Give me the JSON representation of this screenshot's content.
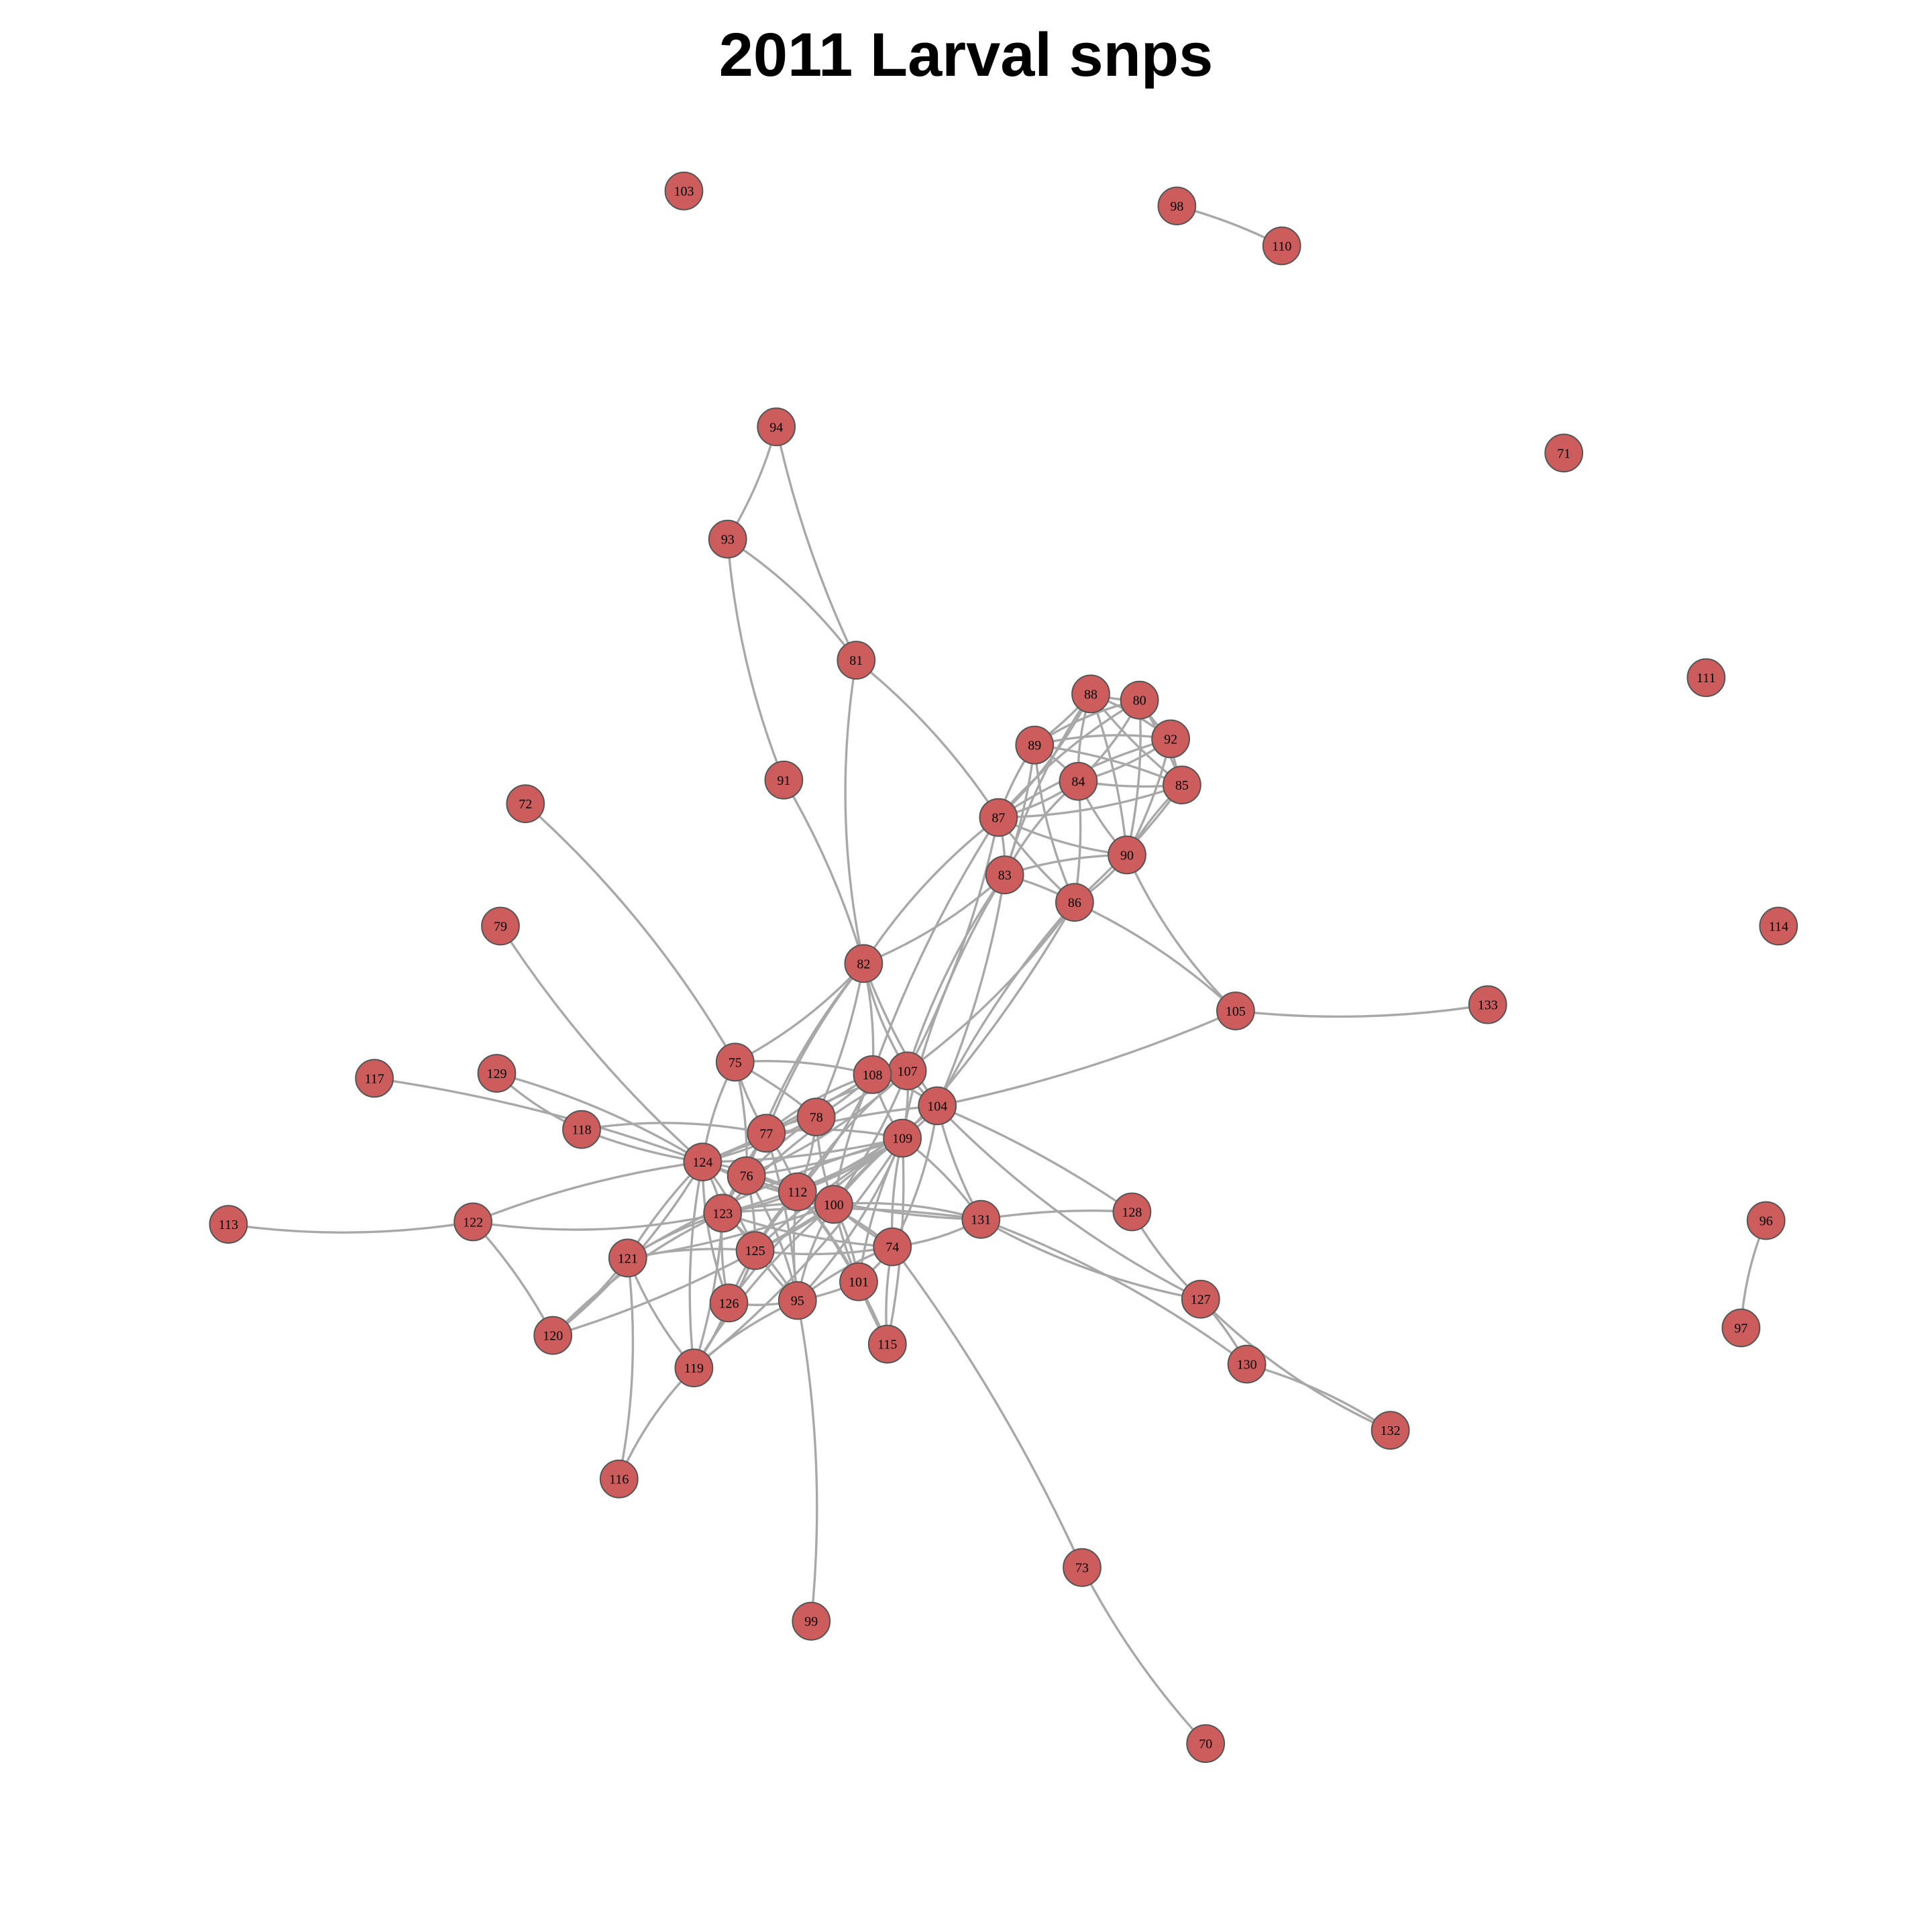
{
  "title": "2011 Larval snps",
  "colors": {
    "node_fill": "#cd5c5c",
    "node_stroke": "#555555",
    "edge": "#a8a8a8",
    "background": "#ffffff"
  },
  "nodes": [
    "70",
    "71",
    "72",
    "73",
    "74",
    "75",
    "76",
    "77",
    "78",
    "79",
    "80",
    "81",
    "82",
    "83",
    "84",
    "85",
    "86",
    "87",
    "88",
    "89",
    "90",
    "91",
    "92",
    "93",
    "94",
    "95",
    "96",
    "97",
    "98",
    "99",
    "100",
    "101",
    "103",
    "104",
    "105",
    "107",
    "108",
    "109",
    "110",
    "111",
    "112",
    "113",
    "114",
    "115",
    "116",
    "117",
    "118",
    "119",
    "120",
    "121",
    "122",
    "123",
    "124",
    "125",
    "126",
    "127",
    "128",
    "129",
    "130",
    "131",
    "132",
    "133"
  ],
  "edges": [
    [
      "98",
      "110"
    ],
    [
      "96",
      "97"
    ],
    [
      "94",
      "93"
    ],
    [
      "94",
      "81"
    ],
    [
      "93",
      "81"
    ],
    [
      "93",
      "91"
    ],
    [
      "91",
      "82"
    ],
    [
      "81",
      "82"
    ],
    [
      "81",
      "87"
    ],
    [
      "88",
      "80"
    ],
    [
      "88",
      "89"
    ],
    [
      "88",
      "84"
    ],
    [
      "88",
      "92"
    ],
    [
      "88",
      "85"
    ],
    [
      "88",
      "87"
    ],
    [
      "88",
      "83"
    ],
    [
      "88",
      "90"
    ],
    [
      "80",
      "89"
    ],
    [
      "80",
      "84"
    ],
    [
      "80",
      "92"
    ],
    [
      "80",
      "85"
    ],
    [
      "80",
      "87"
    ],
    [
      "80",
      "90"
    ],
    [
      "92",
      "85"
    ],
    [
      "92",
      "84"
    ],
    [
      "92",
      "87"
    ],
    [
      "92",
      "90"
    ],
    [
      "92",
      "89"
    ],
    [
      "89",
      "84"
    ],
    [
      "89",
      "87"
    ],
    [
      "89",
      "83"
    ],
    [
      "89",
      "86"
    ],
    [
      "89",
      "85"
    ],
    [
      "84",
      "85"
    ],
    [
      "84",
      "87"
    ],
    [
      "84",
      "90"
    ],
    [
      "84",
      "86"
    ],
    [
      "84",
      "83"
    ],
    [
      "85",
      "87"
    ],
    [
      "85",
      "90"
    ],
    [
      "85",
      "86"
    ],
    [
      "87",
      "90"
    ],
    [
      "87",
      "83"
    ],
    [
      "87",
      "86"
    ],
    [
      "90",
      "86"
    ],
    [
      "90",
      "83"
    ],
    [
      "83",
      "86"
    ],
    [
      "90",
      "105"
    ],
    [
      "86",
      "105"
    ],
    [
      "105",
      "133"
    ],
    [
      "105",
      "104"
    ],
    [
      "87",
      "82"
    ],
    [
      "87",
      "107"
    ],
    [
      "87",
      "108"
    ],
    [
      "83",
      "82"
    ],
    [
      "83",
      "107"
    ],
    [
      "83",
      "104"
    ],
    [
      "83",
      "109"
    ],
    [
      "86",
      "107"
    ],
    [
      "86",
      "104"
    ],
    [
      "86",
      "109"
    ],
    [
      "82",
      "107"
    ],
    [
      "82",
      "108"
    ],
    [
      "82",
      "104"
    ],
    [
      "82",
      "75"
    ],
    [
      "82",
      "77"
    ],
    [
      "82",
      "78"
    ],
    [
      "82",
      "76"
    ],
    [
      "72",
      "75"
    ],
    [
      "79",
      "124"
    ],
    [
      "117",
      "124"
    ],
    [
      "129",
      "118"
    ],
    [
      "129",
      "124"
    ],
    [
      "118",
      "124"
    ],
    [
      "118",
      "77"
    ],
    [
      "113",
      "122"
    ],
    [
      "122",
      "124"
    ],
    [
      "122",
      "123"
    ],
    [
      "75",
      "108"
    ],
    [
      "75",
      "77"
    ],
    [
      "75",
      "78"
    ],
    [
      "75",
      "124"
    ],
    [
      "75",
      "76"
    ],
    [
      "108",
      "107"
    ],
    [
      "108",
      "104"
    ],
    [
      "108",
      "109"
    ],
    [
      "108",
      "78"
    ],
    [
      "108",
      "77"
    ],
    [
      "108",
      "112"
    ],
    [
      "108",
      "100"
    ],
    [
      "108",
      "124"
    ],
    [
      "107",
      "104"
    ],
    [
      "107",
      "109"
    ],
    [
      "107",
      "77"
    ],
    [
      "107",
      "76"
    ],
    [
      "107",
      "112"
    ],
    [
      "107",
      "100"
    ],
    [
      "107",
      "123"
    ],
    [
      "104",
      "109"
    ],
    [
      "104",
      "131"
    ],
    [
      "104",
      "128"
    ],
    [
      "104",
      "127"
    ],
    [
      "104",
      "112"
    ],
    [
      "104",
      "100"
    ],
    [
      "104",
      "74"
    ],
    [
      "104",
      "124"
    ],
    [
      "109",
      "112"
    ],
    [
      "109",
      "100"
    ],
    [
      "109",
      "131"
    ],
    [
      "109",
      "74"
    ],
    [
      "109",
      "76"
    ],
    [
      "109",
      "77"
    ],
    [
      "109",
      "123"
    ],
    [
      "109",
      "125"
    ],
    [
      "109",
      "95"
    ],
    [
      "109",
      "101"
    ],
    [
      "109",
      "115"
    ],
    [
      "109",
      "126"
    ],
    [
      "109",
      "119"
    ],
    [
      "109",
      "121"
    ],
    [
      "109",
      "124"
    ],
    [
      "78",
      "77"
    ],
    [
      "78",
      "124"
    ],
    [
      "78",
      "76"
    ],
    [
      "78",
      "112"
    ],
    [
      "78",
      "100"
    ],
    [
      "77",
      "124"
    ],
    [
      "77",
      "76"
    ],
    [
      "77",
      "112"
    ],
    [
      "77",
      "123"
    ],
    [
      "77",
      "95"
    ],
    [
      "124",
      "76"
    ],
    [
      "124",
      "123"
    ],
    [
      "124",
      "121"
    ],
    [
      "124",
      "120"
    ],
    [
      "124",
      "119"
    ],
    [
      "124",
      "125"
    ],
    [
      "124",
      "126"
    ],
    [
      "124",
      "112"
    ],
    [
      "124",
      "100"
    ],
    [
      "76",
      "112"
    ],
    [
      "76",
      "123"
    ],
    [
      "76",
      "125"
    ],
    [
      "76",
      "100"
    ],
    [
      "76",
      "95"
    ],
    [
      "112",
      "100"
    ],
    [
      "112",
      "123"
    ],
    [
      "112",
      "125"
    ],
    [
      "112",
      "74"
    ],
    [
      "112",
      "95"
    ],
    [
      "112",
      "101"
    ],
    [
      "112",
      "126"
    ],
    [
      "112",
      "115"
    ],
    [
      "100",
      "74"
    ],
    [
      "100",
      "131"
    ],
    [
      "100",
      "123"
    ],
    [
      "100",
      "125"
    ],
    [
      "100",
      "95"
    ],
    [
      "100",
      "101"
    ],
    [
      "100",
      "115"
    ],
    [
      "100",
      "121"
    ],
    [
      "100",
      "119"
    ],
    [
      "100",
      "120"
    ],
    [
      "123",
      "121"
    ],
    [
      "123",
      "125"
    ],
    [
      "123",
      "126"
    ],
    [
      "123",
      "119"
    ],
    [
      "123",
      "120"
    ],
    [
      "123",
      "95"
    ],
    [
      "123",
      "74"
    ],
    [
      "121",
      "120"
    ],
    [
      "121",
      "119"
    ],
    [
      "121",
      "125"
    ],
    [
      "125",
      "95"
    ],
    [
      "125",
      "126"
    ],
    [
      "125",
      "74"
    ],
    [
      "125",
      "119"
    ],
    [
      "74",
      "131"
    ],
    [
      "74",
      "101"
    ],
    [
      "74",
      "115"
    ],
    [
      "74",
      "73"
    ],
    [
      "74",
      "95"
    ],
    [
      "95",
      "99"
    ],
    [
      "95",
      "101"
    ],
    [
      "95",
      "126"
    ],
    [
      "95",
      "119"
    ],
    [
      "126",
      "119"
    ],
    [
      "119",
      "116"
    ],
    [
      "121",
      "116"
    ],
    [
      "120",
      "122"
    ],
    [
      "131",
      "128"
    ],
    [
      "131",
      "127"
    ],
    [
      "131",
      "130"
    ],
    [
      "131",
      "123"
    ],
    [
      "131",
      "124"
    ],
    [
      "128",
      "127"
    ],
    [
      "127",
      "130"
    ],
    [
      "127",
      "132"
    ],
    [
      "130",
      "132"
    ],
    [
      "73",
      "70"
    ]
  ]
}
